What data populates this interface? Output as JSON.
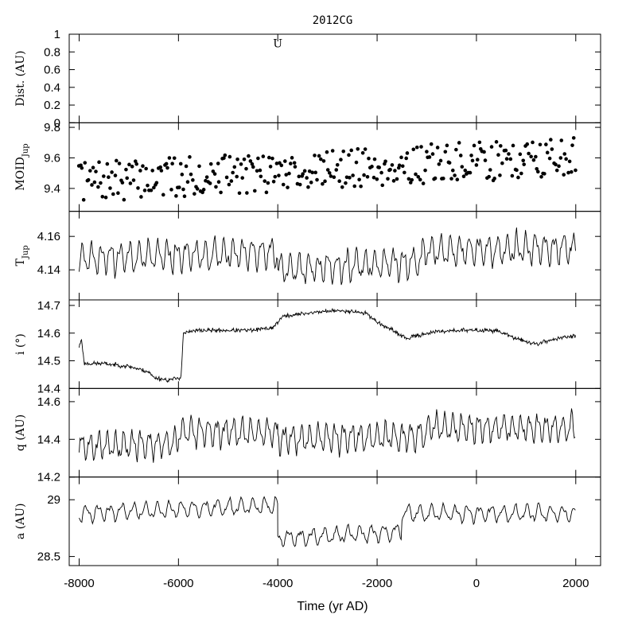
{
  "chart_data": {
    "type": "multi-panel",
    "title": "2012CG",
    "xlabel": "Time (yr AD)",
    "xlim": [
      -8200,
      2500
    ],
    "xticks": [
      -8000,
      -6000,
      -4000,
      -2000,
      0,
      2000
    ],
    "panels": [
      {
        "id": "dist",
        "type": "annotation",
        "ylabel": "Dist. (AU)",
        "ylim": [
          0,
          1
        ],
        "yticks": [
          0,
          0.2,
          0.4,
          0.6,
          0.8,
          1
        ],
        "yticklabels": [
          "0",
          "0.2",
          "0.4",
          "0.6",
          "0.8",
          "1"
        ],
        "annotations": [
          {
            "text": "U",
            "x": -4000,
            "y": 0.85
          }
        ]
      },
      {
        "id": "moid",
        "type": "scatter",
        "ylabel": "MOID",
        "ylabel_sub": "Jup",
        "ylim": [
          9.25,
          9.83
        ],
        "yticks": [
          9.4,
          9.6,
          9.8
        ],
        "yticklabels": [
          "9.4",
          "9.6",
          "9.8"
        ],
        "series": {
          "x_start": -8000,
          "x_end": 2000,
          "count": 320,
          "trend_start": 9.44,
          "trend_end": 9.61,
          "scatter": 0.13,
          "min": 9.28,
          "max": 9.81,
          "seed": 7
        }
      },
      {
        "id": "tjup",
        "type": "line",
        "ylabel": "T",
        "ylabel_sub": "Jup",
        "ylim": [
          4.122,
          4.175
        ],
        "yticks": [
          4.14,
          4.16
        ],
        "yticklabels": [
          "4.14",
          "4.16"
        ],
        "segments": [
          {
            "x_start": -8000,
            "x_end": -4000,
            "base_start": 4.147,
            "base_end": 4.15
          },
          {
            "x_start": -4000,
            "x_end": -1100,
            "base_start": 4.14,
            "base_end": 4.145
          },
          {
            "x_start": -1100,
            "x_end": 2000,
            "base_start": 4.151,
            "base_end": 4.153
          }
        ],
        "wave": {
          "period": 190,
          "amplitude": 0.0105,
          "noise": 0.0035
        },
        "seed": 11
      },
      {
        "id": "incl",
        "type": "line",
        "ylabel": "i (°)",
        "ylim": [
          14.4,
          14.72
        ],
        "yticks": [
          14.4,
          14.5,
          14.6,
          14.7
        ],
        "yticklabels": [
          "14.4",
          "14.5",
          "14.6",
          "14.7"
        ],
        "points": [
          [
            -8000,
            14.55
          ],
          [
            -7950,
            14.58
          ],
          [
            -7900,
            14.49
          ],
          [
            -7500,
            14.49
          ],
          [
            -7000,
            14.48
          ],
          [
            -6600,
            14.46
          ],
          [
            -6500,
            14.44
          ],
          [
            -6200,
            14.43
          ],
          [
            -5950,
            14.44
          ],
          [
            -5900,
            14.6
          ],
          [
            -5600,
            14.61
          ],
          [
            -5000,
            14.61
          ],
          [
            -4500,
            14.61
          ],
          [
            -4100,
            14.62
          ],
          [
            -3900,
            14.66
          ],
          [
            -3500,
            14.67
          ],
          [
            -3000,
            14.68
          ],
          [
            -2500,
            14.68
          ],
          [
            -2200,
            14.67
          ],
          [
            -2000,
            14.64
          ],
          [
            -1700,
            14.61
          ],
          [
            -1400,
            14.58
          ],
          [
            -1000,
            14.6
          ],
          [
            -500,
            14.61
          ],
          [
            0,
            14.61
          ],
          [
            400,
            14.61
          ],
          [
            800,
            14.58
          ],
          [
            1200,
            14.56
          ],
          [
            1600,
            14.58
          ],
          [
            2000,
            14.59
          ]
        ],
        "noise": 0.011,
        "seed": 23
      },
      {
        "id": "q",
        "type": "line",
        "ylabel": "q (AU)",
        "ylim": [
          14.2,
          14.67
        ],
        "yticks": [
          14.2,
          14.4,
          14.6
        ],
        "yticklabels": [
          "14.2",
          "14.4",
          "14.6"
        ],
        "segments": [
          {
            "x_start": -8000,
            "x_end": -6000,
            "base_start": 14.36,
            "base_end": 14.38
          },
          {
            "x_start": -6000,
            "x_end": -4000,
            "base_start": 14.44,
            "base_end": 14.44
          },
          {
            "x_start": -4000,
            "x_end": -1000,
            "base_start": 14.4,
            "base_end": 14.42
          },
          {
            "x_start": -1000,
            "x_end": 2000,
            "base_start": 14.46,
            "base_end": 14.46
          }
        ],
        "wave": {
          "period": 170,
          "amplitude": 0.085,
          "noise": 0.028
        },
        "seed": 31
      },
      {
        "id": "a",
        "type": "line",
        "ylabel": "a (AU)",
        "ylim": [
          28.42,
          29.2
        ],
        "yticks": [
          28.5,
          29
        ],
        "yticklabels": [
          "28.5",
          "29"
        ],
        "segments": [
          {
            "x_start": -8000,
            "x_end": -4000,
            "base_start": 28.88,
            "base_end": 28.95
          },
          {
            "x_start": -4000,
            "x_end": -1500,
            "base_start": 28.66,
            "base_end": 28.72
          },
          {
            "x_start": -1500,
            "x_end": 2000,
            "base_start": 28.88,
            "base_end": 28.88
          }
        ],
        "wave": {
          "period": 240,
          "amplitude": 0.085,
          "noise": 0.025
        },
        "seed": 43
      }
    ]
  }
}
